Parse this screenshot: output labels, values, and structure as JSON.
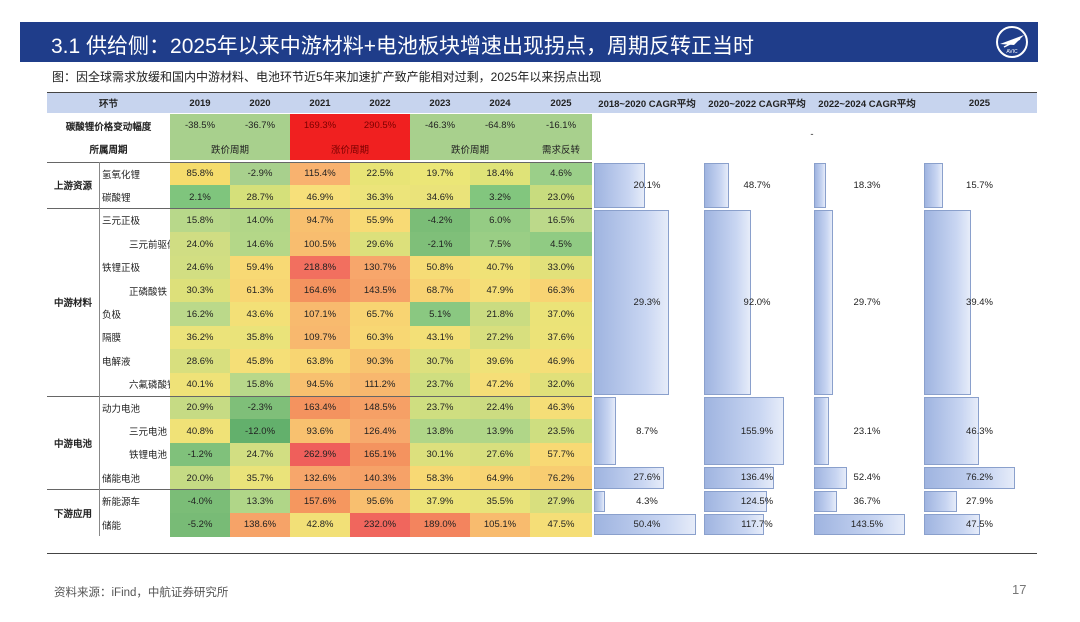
{
  "header": {
    "title": "3.1 供给侧：2025年以来中游材料+电池板块增速出现拐点，周期反转正当时",
    "logo_text": "AVIC"
  },
  "subtitle": "图：因全球需求放缓和国内中游材料、电池环节近5年来加速扩产致产能相对过剩，2025年以来拐点出现",
  "table": {
    "columns": [
      "环节",
      "2019",
      "2020",
      "2021",
      "2022",
      "2023",
      "2024",
      "2025",
      "2018~2020 CAGR平均",
      "2020~2022 CAGR平均",
      "2022~2024 CAGR平均",
      "2025"
    ],
    "price_row": {
      "label": "碳酸锂价格变动幅度",
      "values": [
        "-38.5%",
        "-36.7%",
        "169.3%",
        "290.5%",
        "-46.3%",
        "-64.8%",
        "-16.1%"
      ]
    },
    "cycle_row": {
      "label": "所属周期",
      "phases": [
        "跌价周期",
        "涨价周期",
        "跌价周期",
        "需求反转"
      ]
    },
    "dash_mark": "-",
    "groups": [
      {
        "name": "上游资源",
        "cagr": [
          "20.1%",
          "48.7%",
          "18.3%",
          "15.7%"
        ]
      },
      {
        "name": "中游材料",
        "cagr": [
          "29.3%",
          "92.0%",
          "29.7%",
          "39.4%"
        ]
      },
      {
        "name": "中游电池",
        "cagr": [
          "8.7%",
          "155.9%",
          "23.1%",
          "46.3%"
        ]
      },
      {
        "name": "下游应用",
        "cagr": []
      }
    ],
    "row_cagr": {
      "储能电池": [
        "27.6%",
        "136.4%",
        "52.4%",
        "76.2%"
      ],
      "新能源车": [
        "4.3%",
        "124.5%",
        "36.7%",
        "27.9%"
      ],
      "储能": [
        "50.4%",
        "117.7%",
        "143.5%",
        "47.5%"
      ]
    },
    "rows": [
      {
        "label": "氢氧化锂",
        "values": [
          "85.8%",
          "-2.9%",
          "115.4%",
          "22.5%",
          "19.7%",
          "18.4%",
          "4.6%"
        ],
        "colors": [
          "#f5dc6c",
          "#a8d08d",
          "#f8b26f",
          "#e8e476",
          "#ebe677",
          "#dfe378",
          "#9bcf89"
        ]
      },
      {
        "label": "碳酸锂",
        "values": [
          "2.1%",
          "28.7%",
          "46.9%",
          "36.3%",
          "34.6%",
          "3.2%",
          "23.0%"
        ],
        "colors": [
          "#7fc57d",
          "#d5e07a",
          "#f7e07a",
          "#ece47a",
          "#eae37a",
          "#82c67e",
          "#c8dc7e"
        ]
      },
      {
        "label": "三元正极",
        "values": [
          "15.8%",
          "14.0%",
          "94.7%",
          "55.9%",
          "-4.2%",
          "6.0%",
          "16.5%"
        ],
        "colors": [
          "#b8d88a",
          "#b2d688",
          "#f8c06f",
          "#f8da75",
          "#7bbd77",
          "#95cc84",
          "#bcd98a"
        ]
      },
      {
        "label": "三元前驱体",
        "values": [
          "24.0%",
          "14.6%",
          "100.5%",
          "29.6%",
          "-2.1%",
          "7.5%",
          "4.5%"
        ],
        "colors": [
          "#d0dd83",
          "#b4d788",
          "#f8bd6f",
          "#dce07b",
          "#7fbf79",
          "#9ace85",
          "#90cb83"
        ]
      },
      {
        "label": "铁锂正极",
        "values": [
          "24.6%",
          "59.4%",
          "218.8%",
          "130.7%",
          "50.8%",
          "40.7%",
          "33.0%"
        ],
        "colors": [
          "#d2de82",
          "#f8d974",
          "#f26f5f",
          "#f7a66b",
          "#f6dc76",
          "#f0e277",
          "#e2e17a"
        ]
      },
      {
        "label": "正磷酸铁",
        "values": [
          "30.3%",
          "61.3%",
          "164.6%",
          "143.5%",
          "68.7%",
          "47.9%",
          "66.3%"
        ],
        "colors": [
          "#dde07a",
          "#f8d673",
          "#f4935f",
          "#f6a268",
          "#f8d272",
          "#f5de77",
          "#f8d473"
        ]
      },
      {
        "label": "负极",
        "values": [
          "16.2%",
          "43.6%",
          "107.1%",
          "65.7%",
          "5.1%",
          "21.8%",
          "37.0%"
        ],
        "colors": [
          "#bbd98a",
          "#f3e077",
          "#f8ba6e",
          "#f8d472",
          "#8ac881",
          "#cadc81",
          "#ebe378"
        ]
      },
      {
        "label": "隔膜",
        "values": [
          "36.2%",
          "35.8%",
          "109.7%",
          "60.3%",
          "43.1%",
          "27.2%",
          "37.6%"
        ],
        "colors": [
          "#ebe37a",
          "#eae37a",
          "#f8b86e",
          "#f8d773",
          "#f3e077",
          "#d8df7e",
          "#ece378"
        ]
      },
      {
        "label": "电解液",
        "values": [
          "28.6%",
          "45.8%",
          "63.8%",
          "90.3%",
          "30.7%",
          "39.6%",
          "46.9%"
        ],
        "colors": [
          "#d8df7e",
          "#f5df77",
          "#f8d572",
          "#f8c46f",
          "#dde07d",
          "#efe278",
          "#f5de77"
        ]
      },
      {
        "label": "六氟磷酸锂",
        "values": [
          "40.1%",
          "15.8%",
          "94.5%",
          "111.2%",
          "23.7%",
          "47.2%",
          "32.0%"
        ],
        "colors": [
          "#efe278",
          "#b8d88a",
          "#f8c06f",
          "#f8b76e",
          "#cfde80",
          "#f5de77",
          "#e0e07a"
        ]
      },
      {
        "label": "动力电池",
        "values": [
          "20.9%",
          "-2.3%",
          "163.4%",
          "148.5%",
          "23.7%",
          "22.4%",
          "46.3%"
        ],
        "colors": [
          "#c6db84",
          "#7fbf79",
          "#f4935f",
          "#f6a066",
          "#cfde80",
          "#ccdc81",
          "#f5de77"
        ]
      },
      {
        "label": "三元电池",
        "values": [
          "40.8%",
          "-12.0%",
          "93.6%",
          "126.4%",
          "13.8%",
          "13.9%",
          "23.5%"
        ],
        "colors": [
          "#f0e277",
          "#63b06c",
          "#f8c16f",
          "#f7a96c",
          "#b0d688",
          "#b0d688",
          "#cede80"
        ]
      },
      {
        "label": "铁锂电池",
        "values": [
          "-1.2%",
          "24.7%",
          "262.9%",
          "165.1%",
          "30.1%",
          "27.6%",
          "57.7%"
        ],
        "colors": [
          "#80c17b",
          "#d2de82",
          "#ef5f5b",
          "#f4935f",
          "#dce07d",
          "#d8df7e",
          "#f8d974"
        ]
      },
      {
        "label": "储能电池",
        "values": [
          "20.0%",
          "35.7%",
          "132.6%",
          "140.3%",
          "58.3%",
          "64.9%",
          "76.2%"
        ],
        "colors": [
          "#c5db84",
          "#eae37a",
          "#f7a66b",
          "#f6a268",
          "#f8d974",
          "#f8d473",
          "#f8cd71"
        ]
      },
      {
        "label": "新能源车",
        "values": [
          "-4.0%",
          "13.3%",
          "157.6%",
          "95.6%",
          "37.9%",
          "35.5%",
          "27.9%"
        ],
        "colors": [
          "#7bbd77",
          "#b0d688",
          "#f5975f",
          "#f8bf6f",
          "#ece378",
          "#e8e37a",
          "#d8df7e"
        ]
      },
      {
        "label": "储能",
        "values": [
          "-5.2%",
          "138.6%",
          "42.8%",
          "232.0%",
          "189.0%",
          "105.1%",
          "47.5%"
        ],
        "colors": [
          "#78bb76",
          "#f6a368",
          "#f2e077",
          "#f0665d",
          "#f3845e",
          "#f8bb6e",
          "#f5de77"
        ]
      }
    ],
    "phase_colors": {
      "fall": "#a8d08d",
      "rise": "#f02020",
      "demand": "#a8d08d",
      "price_row": "#a8d08d"
    }
  },
  "footer": {
    "source": "资料来源：iFind，中航证券研究所",
    "page": "17"
  }
}
